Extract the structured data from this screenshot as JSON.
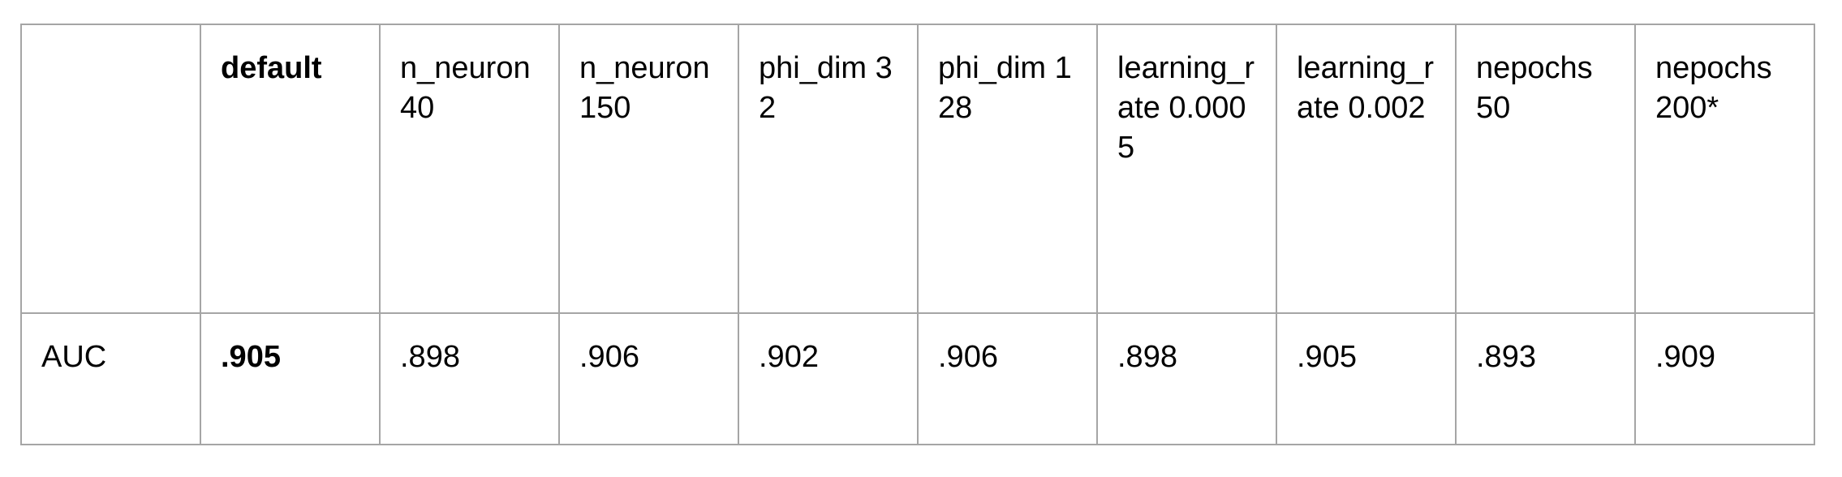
{
  "table": {
    "header": [
      "",
      "default",
      "n_neuron 40",
      "n_neuron 150",
      "phi_dim 32",
      "phi_dim 128",
      "learning_rate 0.0005",
      "learning_rate 0.002",
      "nepochs 50",
      "nepochs 200*"
    ],
    "rows": [
      {
        "label": "AUC",
        "values": [
          ".905",
          ".898",
          ".906",
          ".902",
          ".906",
          ".898",
          ".905",
          ".893",
          ".909"
        ]
      }
    ],
    "bold_column": "default"
  }
}
